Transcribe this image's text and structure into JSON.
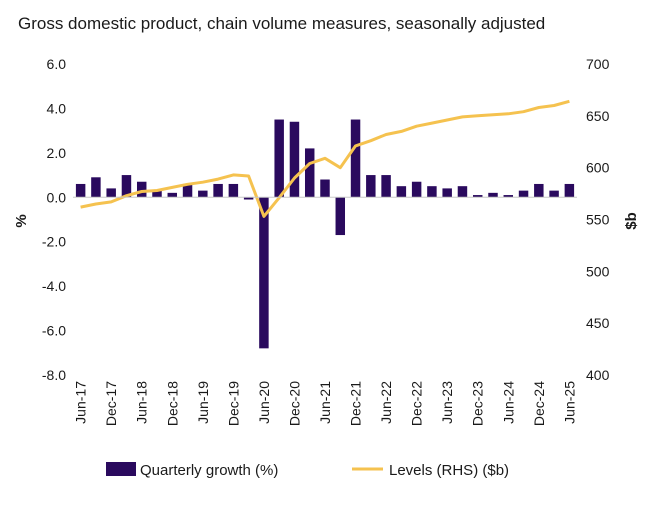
{
  "chart_data": {
    "type": "bar",
    "title": "Gross domestic product, chain volume measures, seasonally adjusted",
    "ylabel": "%",
    "y2label": "$b",
    "ylim": [
      -8,
      6
    ],
    "y2lim": [
      400,
      700
    ],
    "yticks": [
      "6.0",
      "4.0",
      "2.0",
      "0.0",
      "-2.0",
      "-4.0",
      "-6.0",
      "-8.0"
    ],
    "y2ticks": [
      "700",
      "650",
      "600",
      "550",
      "500",
      "450",
      "400"
    ],
    "categories": [
      "Jun-17",
      "Sep-17",
      "Dec-17",
      "Mar-18",
      "Jun-18",
      "Sep-18",
      "Dec-18",
      "Mar-19",
      "Jun-19",
      "Sep-19",
      "Dec-19",
      "Mar-20",
      "Jun-20",
      "Sep-20",
      "Dec-20",
      "Mar-21",
      "Jun-21",
      "Sep-21",
      "Dec-21",
      "Mar-22",
      "Jun-22",
      "Sep-22",
      "Dec-22",
      "Mar-23",
      "Jun-23",
      "Sep-23",
      "Dec-23",
      "Mar-24",
      "Jun-24",
      "Sep-24",
      "Dec-24",
      "Mar-25",
      "Jun-25"
    ],
    "xticklabels": [
      "Jun-17",
      "Dec-17",
      "Jun-18",
      "Dec-18",
      "Jun-19",
      "Dec-19",
      "Jun-20",
      "Dec-20",
      "Jun-21",
      "Dec-21",
      "Jun-22",
      "Dec-22",
      "Jun-23",
      "Dec-23",
      "Jun-24",
      "Dec-24",
      "Jun-25"
    ],
    "series": [
      {
        "name": "Quarterly growth (%)",
        "type": "bar",
        "axis": "left",
        "color": "#2a0a5e",
        "values": [
          0.6,
          0.9,
          0.4,
          1.0,
          0.7,
          0.3,
          0.2,
          0.6,
          0.3,
          0.6,
          0.6,
          -0.1,
          -6.8,
          3.5,
          3.4,
          2.2,
          0.8,
          -1.7,
          3.5,
          1.0,
          1.0,
          0.5,
          0.7,
          0.5,
          0.4,
          0.5,
          0.1,
          0.2,
          0.1,
          0.3,
          0.6,
          0.3,
          0.6
        ]
      },
      {
        "name": "Levels (RHS) ($b)",
        "type": "line",
        "axis": "right",
        "color": "#f5c24f",
        "values": [
          562,
          565,
          567,
          573,
          577,
          578,
          581,
          584,
          586,
          589,
          593,
          592,
          553,
          571,
          590,
          604,
          609,
          600,
          621,
          626,
          632,
          635,
          640,
          643,
          646,
          649,
          650,
          651,
          652,
          654,
          658,
          660,
          664
        ]
      }
    ],
    "legend": "bottom"
  }
}
